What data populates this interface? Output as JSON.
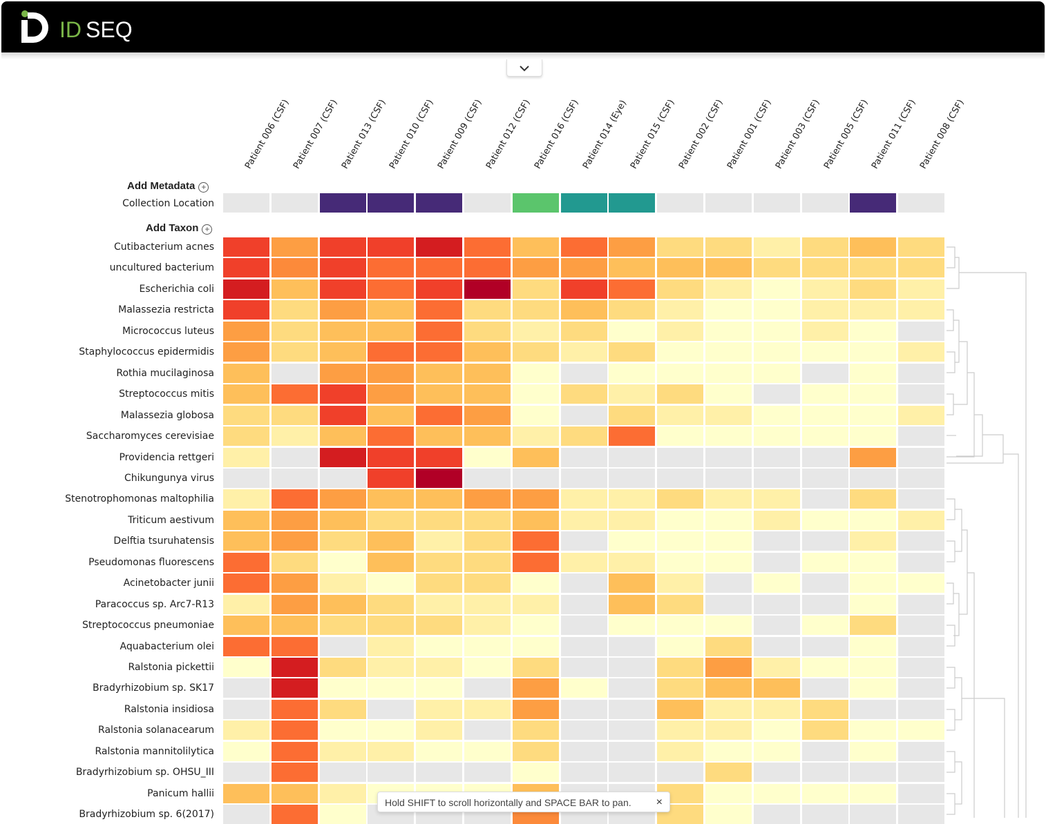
{
  "app": {
    "logo_text": "IDSEQ"
  },
  "columns": [
    "Patient 006 (CSF)",
    "Patient 007 (CSF)",
    "Patient 013 (CSF)",
    "Patient 010 (CSF)",
    "Patient 009 (CSF)",
    "Patient 012 (CSF)",
    "Patient 016 (CSF)",
    "Patient 014 (Eye)",
    "Patient 015 (CSF)",
    "Patient 002 (CSF)",
    "Patient 001 (CSF)",
    "Patient 003 (CSF)",
    "Patient 005 (CSF)",
    "Patient 011 (CSF)",
    "Patient 008 (CSF)"
  ],
  "metadata": {
    "add_label": "Add Metadata",
    "rows": [
      {
        "label": "Collection Location",
        "values": [
          0,
          0,
          1,
          1,
          1,
          0,
          2,
          3,
          3,
          0,
          0,
          0,
          0,
          1,
          0
        ]
      }
    ],
    "palette": [
      "#e7e7e7",
      "#462a77",
      "#5bc56c",
      "#229990"
    ]
  },
  "taxa": {
    "add_label": "Add Taxon",
    "rows": [
      {
        "label": "Cutibacterium acnes",
        "values": [
          8,
          5,
          8,
          8,
          9,
          7,
          4,
          7,
          5,
          3,
          3,
          2,
          3,
          4,
          3
        ]
      },
      {
        "label": "uncultured bacterium",
        "values": [
          8,
          6,
          8,
          7,
          7,
          7,
          5,
          5,
          4,
          4,
          4,
          3,
          3,
          3,
          3
        ]
      },
      {
        "label": "Escherichia coli",
        "values": [
          9,
          4,
          8,
          7,
          8,
          10,
          3,
          8,
          7,
          3,
          2,
          1,
          2,
          3,
          2
        ]
      },
      {
        "label": "Malassezia restricta",
        "values": [
          8,
          3,
          5,
          4,
          7,
          3,
          3,
          4,
          3,
          2,
          1,
          1,
          2,
          2,
          2
        ]
      },
      {
        "label": "Micrococcus luteus",
        "values": [
          5,
          3,
          4,
          4,
          7,
          3,
          2,
          3,
          1,
          2,
          1,
          1,
          2,
          1,
          0
        ]
      },
      {
        "label": "Staphylococcus epidermidis",
        "values": [
          5,
          3,
          4,
          7,
          7,
          4,
          3,
          2,
          3,
          1,
          1,
          1,
          1,
          1,
          2
        ]
      },
      {
        "label": "Rothia mucilaginosa",
        "values": [
          4,
          0,
          5,
          5,
          4,
          4,
          1,
          0,
          1,
          1,
          1,
          1,
          0,
          1,
          0
        ]
      },
      {
        "label": "Streptococcus mitis",
        "values": [
          4,
          7,
          8,
          5,
          4,
          4,
          1,
          3,
          2,
          3,
          1,
          0,
          1,
          1,
          0
        ]
      },
      {
        "label": "Malassezia globosa",
        "values": [
          3,
          3,
          8,
          4,
          7,
          5,
          1,
          0,
          3,
          2,
          2,
          1,
          1,
          1,
          2
        ]
      },
      {
        "label": "Saccharomyces cerevisiae",
        "values": [
          3,
          2,
          4,
          7,
          4,
          4,
          2,
          3,
          7,
          1,
          1,
          1,
          1,
          1,
          0
        ]
      },
      {
        "label": "Providencia rettgeri",
        "values": [
          2,
          0,
          9,
          8,
          8,
          1,
          4,
          0,
          0,
          0,
          0,
          0,
          0,
          5,
          0
        ]
      },
      {
        "label": "Chikungunya virus",
        "values": [
          0,
          0,
          0,
          8,
          10,
          0,
          0,
          0,
          0,
          0,
          0,
          0,
          0,
          0,
          0
        ]
      },
      {
        "label": "Stenotrophomonas maltophilia",
        "values": [
          2,
          7,
          5,
          4,
          4,
          5,
          5,
          2,
          2,
          3,
          2,
          2,
          0,
          3,
          0
        ]
      },
      {
        "label": "Triticum aestivum",
        "values": [
          4,
          5,
          4,
          3,
          3,
          3,
          4,
          2,
          2,
          1,
          1,
          2,
          1,
          1,
          2
        ]
      },
      {
        "label": "Delftia tsuruhatensis",
        "values": [
          4,
          5,
          3,
          4,
          2,
          3,
          7,
          0,
          1,
          1,
          1,
          0,
          0,
          2,
          0
        ]
      },
      {
        "label": "Pseudomonas fluorescens",
        "values": [
          7,
          3,
          1,
          4,
          3,
          3,
          7,
          2,
          2,
          1,
          1,
          0,
          1,
          1,
          0
        ]
      },
      {
        "label": "Acinetobacter junii",
        "values": [
          7,
          5,
          2,
          1,
          3,
          3,
          1,
          0,
          4,
          2,
          0,
          1,
          0,
          1,
          1
        ]
      },
      {
        "label": "Paracoccus sp. Arc7-R13",
        "values": [
          2,
          5,
          4,
          3,
          2,
          2,
          2,
          0,
          4,
          3,
          0,
          0,
          0,
          1,
          0
        ]
      },
      {
        "label": "Streptococcus pneumoniae",
        "values": [
          4,
          4,
          3,
          3,
          3,
          2,
          1,
          0,
          1,
          1,
          1,
          0,
          1,
          3,
          0
        ]
      },
      {
        "label": "Aquabacterium olei",
        "values": [
          7,
          7,
          0,
          2,
          1,
          1,
          1,
          0,
          0,
          1,
          3,
          0,
          0,
          1,
          0
        ]
      },
      {
        "label": "Ralstonia pickettii",
        "values": [
          1,
          9,
          3,
          2,
          2,
          1,
          3,
          0,
          0,
          3,
          5,
          2,
          1,
          1,
          0
        ]
      },
      {
        "label": "Bradyrhizobium sp. SK17",
        "values": [
          0,
          9,
          1,
          1,
          1,
          0,
          5,
          1,
          0,
          3,
          4,
          4,
          0,
          1,
          0
        ]
      },
      {
        "label": "Ralstonia insidiosa",
        "values": [
          0,
          7,
          3,
          0,
          2,
          2,
          5,
          0,
          0,
          4,
          2,
          2,
          3,
          0,
          0
        ]
      },
      {
        "label": "Ralstonia solanacearum",
        "values": [
          2,
          7,
          1,
          1,
          2,
          0,
          3,
          0,
          0,
          2,
          2,
          1,
          3,
          1,
          1
        ]
      },
      {
        "label": "Ralstonia mannitolilytica",
        "values": [
          1,
          7,
          2,
          2,
          1,
          1,
          3,
          0,
          0,
          2,
          1,
          1,
          0,
          1,
          0
        ]
      },
      {
        "label": "Bradyrhizobium sp. OHSU_III",
        "values": [
          0,
          7,
          0,
          0,
          0,
          0,
          1,
          0,
          0,
          0,
          3,
          0,
          0,
          0,
          0
        ]
      },
      {
        "label": "Panicum hallii",
        "values": [
          4,
          4,
          2,
          1,
          1,
          1,
          4,
          0,
          0,
          3,
          1,
          1,
          1,
          1,
          0
        ]
      },
      {
        "label": "Bradyrhizobium sp. 6(2017)",
        "values": [
          0,
          7,
          1,
          0,
          0,
          0,
          6,
          0,
          0,
          3,
          1,
          0,
          0,
          0,
          0
        ]
      }
    ],
    "scale": [
      "#e7e7e7",
      "#ffffcc",
      "#fff0a8",
      "#fedb7f",
      "#febf5a",
      "#fd9e43",
      "#fc8a3a",
      "#fc6d33",
      "#f0402a",
      "#d41d20",
      "#b10026"
    ]
  },
  "toast": {
    "message": "Hold SHIFT to scroll horizontally and SPACE BAR to pan.",
    "close": "×"
  }
}
